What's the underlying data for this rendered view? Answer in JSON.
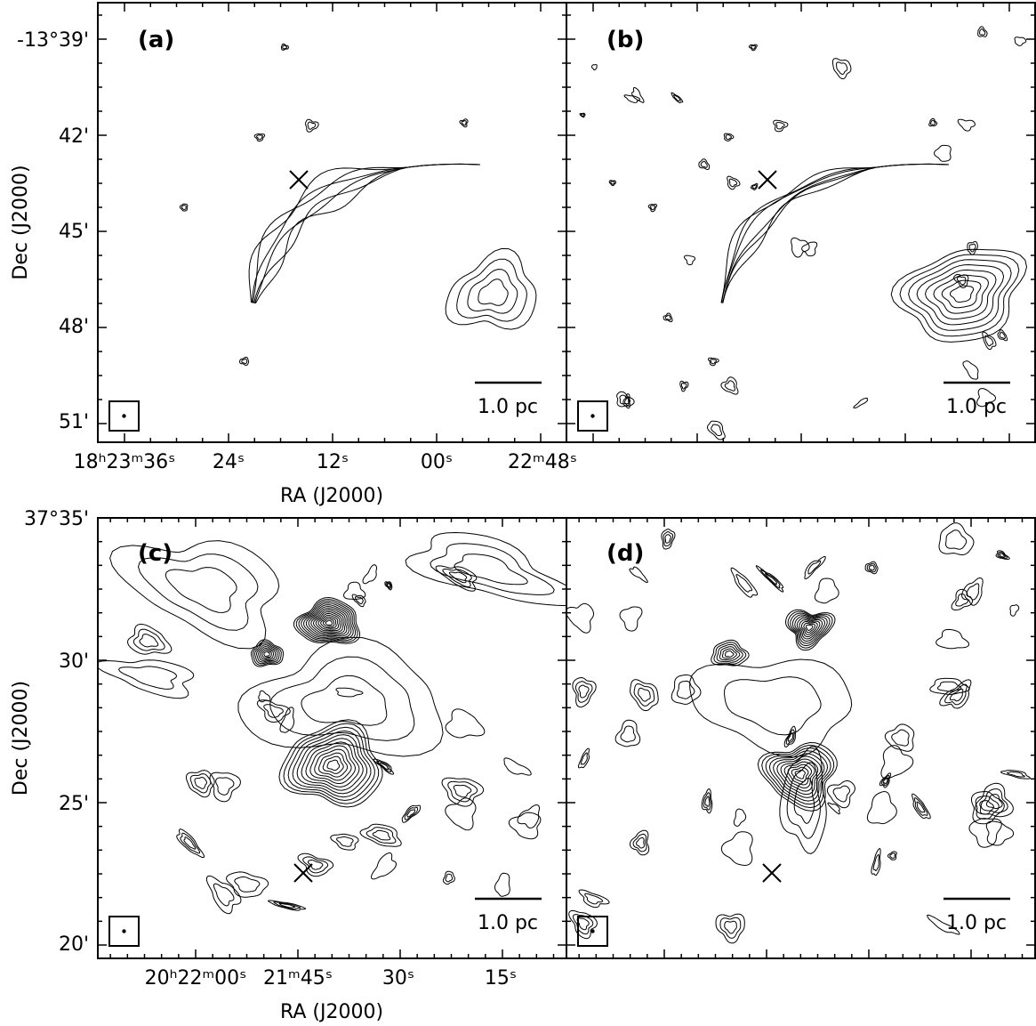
{
  "figure": {
    "top": {
      "dec_ticks": [
        "-13°39'",
        "42'",
        "45'",
        "48'",
        "51'"
      ],
      "ra_ticks": [
        "18ʰ23ᵐ36ˢ",
        "24ˢ",
        "12ˢ",
        "00ˢ",
        "22ᵐ48ˢ"
      ],
      "x_label": "RA (J2000)",
      "y_label": "Dec (J2000)",
      "panels": [
        {
          "label": "(a)",
          "scale_bar": "1.0 pc"
        },
        {
          "label": "(b)",
          "scale_bar": "1.0 pc"
        }
      ]
    },
    "bottom": {
      "dec_ticks": [
        "37°35'",
        "30'",
        "25'",
        "20'"
      ],
      "ra_ticks": [
        "20ʰ22ᵐ00ˢ",
        "21ᵐ45ˢ",
        "30ˢ",
        "15ˢ"
      ],
      "x_label": "RA (J2000)",
      "y_label": "Dec (J2000)",
      "panels": [
        {
          "label": "(c)",
          "scale_bar": "1.0 pc"
        },
        {
          "label": "(d)",
          "scale_bar": "1.0 pc"
        }
      ]
    }
  }
}
